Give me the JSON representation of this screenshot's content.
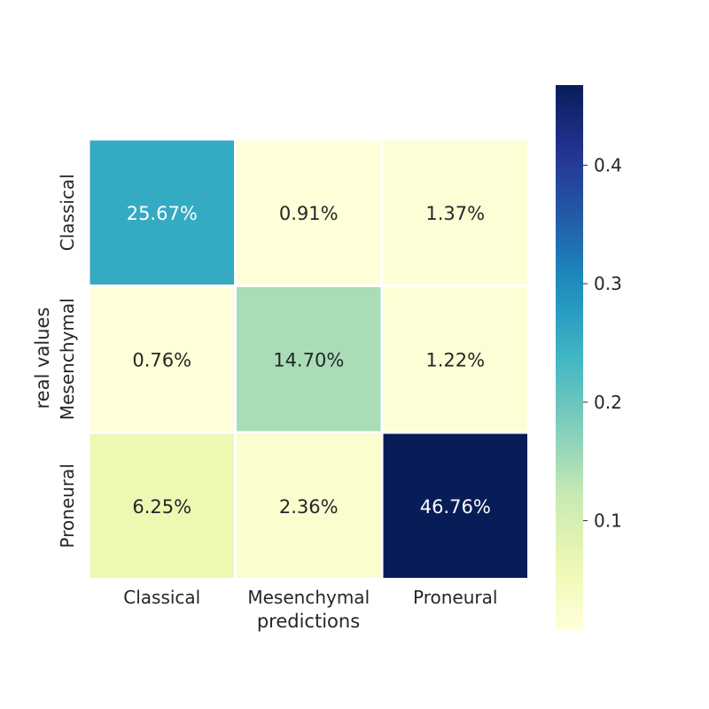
{
  "chart_data": {
    "type": "heatmap",
    "title": "",
    "xlabel": "predictions",
    "ylabel": "real values",
    "x_categories": [
      "Classical",
      "Mesenchymal",
      "Proneural"
    ],
    "y_categories": [
      "Classical",
      "Mesenchymal",
      "Proneural"
    ],
    "values": [
      [
        0.2567,
        0.0091,
        0.0137
      ],
      [
        0.0076,
        0.147,
        0.0122
      ],
      [
        0.0625,
        0.0236,
        0.4676
      ]
    ],
    "cell_labels": [
      [
        "25.67%",
        "0.91%",
        "1.37%"
      ],
      [
        "0.76%",
        "14.70%",
        "1.22%"
      ],
      [
        "6.25%",
        "2.36%",
        "46.76%"
      ]
    ],
    "colorbar": {
      "colormap": "YlGnBu",
      "range": [
        0.0076,
        0.4676
      ],
      "ticks": [
        0.1,
        0.2,
        0.3,
        0.4
      ],
      "tick_labels": [
        "0.1",
        "0.2",
        "0.3",
        "0.4"
      ]
    }
  }
}
